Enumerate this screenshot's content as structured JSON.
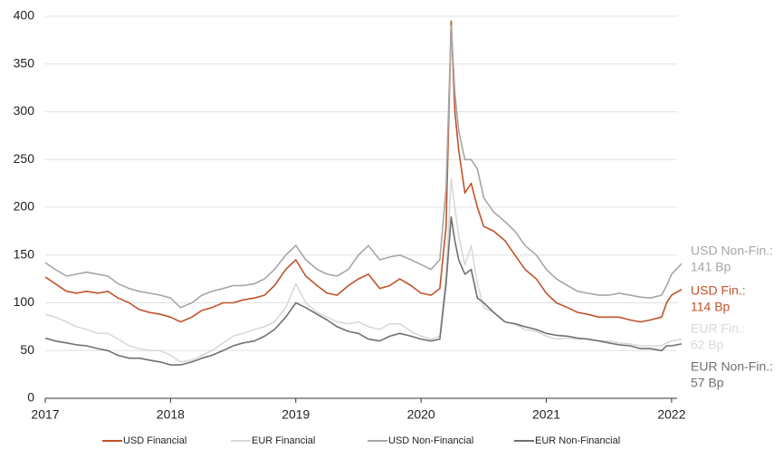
{
  "chart_data": {
    "type": "line",
    "x": [
      2017.0,
      2017.08,
      2017.17,
      2017.25,
      2017.33,
      2017.42,
      2017.5,
      2017.58,
      2017.67,
      2017.75,
      2017.83,
      2017.92,
      2018.0,
      2018.08,
      2018.17,
      2018.25,
      2018.33,
      2018.42,
      2018.5,
      2018.58,
      2018.67,
      2018.75,
      2018.83,
      2018.92,
      2019.0,
      2019.08,
      2019.17,
      2019.25,
      2019.33,
      2019.42,
      2019.5,
      2019.58,
      2019.67,
      2019.75,
      2019.83,
      2019.92,
      2020.0,
      2020.08,
      2020.15,
      2020.2,
      2020.24,
      2020.27,
      2020.3,
      2020.35,
      2020.4,
      2020.45,
      2020.5,
      2020.58,
      2020.67,
      2020.75,
      2020.83,
      2020.92,
      2021.0,
      2021.08,
      2021.17,
      2021.25,
      2021.33,
      2021.42,
      2021.5,
      2021.58,
      2021.67,
      2021.75,
      2021.83,
      2021.92,
      2021.96,
      2022.0,
      2022.08
    ],
    "series": [
      {
        "name": "USD Financial",
        "color": "#c0532b",
        "values": [
          127,
          120,
          112,
          110,
          112,
          110,
          112,
          105,
          100,
          93,
          90,
          88,
          85,
          80,
          85,
          92,
          95,
          100,
          100,
          103,
          105,
          108,
          118,
          135,
          145,
          128,
          118,
          110,
          108,
          118,
          125,
          130,
          115,
          118,
          125,
          118,
          110,
          108,
          115,
          180,
          395,
          300,
          260,
          215,
          225,
          200,
          180,
          175,
          165,
          150,
          135,
          125,
          110,
          100,
          95,
          90,
          88,
          85,
          85,
          85,
          82,
          80,
          82,
          85,
          100,
          108,
          114
        ]
      },
      {
        "name": "EUR Financial",
        "color": "#d9d9d9",
        "values": [
          88,
          85,
          80,
          75,
          72,
          68,
          68,
          62,
          55,
          52,
          50,
          50,
          45,
          38,
          40,
          45,
          50,
          58,
          65,
          68,
          72,
          75,
          80,
          95,
          120,
          100,
          90,
          85,
          80,
          78,
          80,
          75,
          72,
          78,
          78,
          70,
          65,
          62,
          65,
          130,
          230,
          200,
          170,
          140,
          160,
          120,
          95,
          90,
          80,
          78,
          72,
          70,
          65,
          62,
          63,
          62,
          62,
          60,
          60,
          58,
          57,
          55,
          55,
          55,
          58,
          60,
          62
        ]
      },
      {
        "name": "USD Non-Financial",
        "color": "#a6a6a6",
        "values": [
          142,
          135,
          128,
          130,
          132,
          130,
          128,
          120,
          115,
          112,
          110,
          108,
          105,
          95,
          100,
          108,
          112,
          115,
          118,
          118,
          120,
          125,
          135,
          150,
          160,
          145,
          135,
          130,
          128,
          135,
          150,
          160,
          145,
          148,
          150,
          145,
          140,
          135,
          145,
          220,
          390,
          320,
          280,
          250,
          250,
          240,
          210,
          195,
          185,
          175,
          160,
          150,
          135,
          125,
          118,
          112,
          110,
          108,
          108,
          110,
          108,
          106,
          105,
          108,
          118,
          130,
          141
        ]
      },
      {
        "name": "EUR Non-Financial",
        "color": "#707070",
        "values": [
          63,
          60,
          58,
          56,
          55,
          52,
          50,
          45,
          42,
          42,
          40,
          38,
          35,
          35,
          38,
          42,
          45,
          50,
          55,
          58,
          60,
          65,
          72,
          85,
          100,
          95,
          88,
          82,
          75,
          70,
          68,
          62,
          60,
          65,
          68,
          65,
          62,
          60,
          62,
          120,
          190,
          165,
          145,
          130,
          135,
          105,
          100,
          90,
          80,
          78,
          75,
          72,
          68,
          66,
          65,
          63,
          62,
          60,
          58,
          56,
          55,
          52,
          52,
          50,
          55,
          55,
          57
        ]
      }
    ],
    "annotations": [
      {
        "lines": [
          "USD Non-Fin.:",
          "141 Bp"
        ],
        "color": "#a6a6a6"
      },
      {
        "lines": [
          "USD Fin.:",
          "114 Bp"
        ],
        "color": "#c0532b"
      },
      {
        "lines": [
          "EUR Fin.:",
          "62 Bp"
        ],
        "color": "#d9d9d9"
      },
      {
        "lines": [
          "EUR Non-Fin.:",
          "57 Bp"
        ],
        "color": "#707070"
      }
    ],
    "xlim": [
      2017,
      2022.08
    ],
    "xticks": [
      2017,
      2018,
      2019,
      2020,
      2021,
      2022
    ],
    "ylim": [
      0,
      400
    ],
    "yticks": [
      0,
      50,
      100,
      150,
      200,
      250,
      300,
      350,
      400
    ],
    "grid": true,
    "legend": "bottom"
  }
}
